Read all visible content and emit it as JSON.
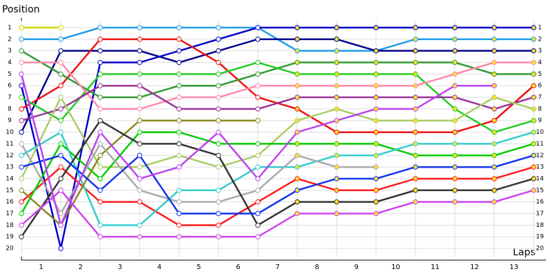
{
  "chart_data": {
    "type": "line",
    "y_label": "Position",
    "x_label": "Laps",
    "x": [
      0,
      1,
      2,
      3,
      4,
      5,
      6,
      7,
      8,
      9,
      10,
      11,
      12,
      13
    ],
    "xlim": [
      0,
      13
    ],
    "ylim": [
      1,
      20
    ],
    "y_reversed": true,
    "grid": true,
    "xticks": [
      {
        "value": 0.5,
        "label": "1"
      },
      {
        "value": 1.5,
        "label": "2"
      },
      {
        "value": 2.5,
        "label": "3"
      },
      {
        "value": 3.5,
        "label": "4"
      },
      {
        "value": 4.5,
        "label": "5"
      },
      {
        "value": 5.5,
        "label": "6"
      },
      {
        "value": 6.5,
        "label": "7"
      },
      {
        "value": 7.5,
        "label": "8"
      },
      {
        "value": 8.5,
        "label": "9"
      },
      {
        "value": 9.5,
        "label": "10"
      },
      {
        "value": 10.5,
        "label": "11"
      },
      {
        "value": 11.5,
        "label": "12"
      },
      {
        "value": 12.5,
        "label": "13"
      }
    ],
    "yticks": [
      1,
      2,
      3,
      4,
      5,
      6,
      7,
      8,
      9,
      10,
      11,
      12,
      13,
      14,
      15,
      16,
      17,
      18,
      19,
      20
    ],
    "series": [
      {
        "color": "#d4d400",
        "values": [
          1,
          1,
          null,
          null,
          null,
          null,
          null,
          null,
          null,
          null,
          null,
          null,
          null,
          null
        ]
      },
      {
        "color": "#1e9be8",
        "values": [
          2,
          2,
          1,
          1,
          1,
          1,
          1,
          3,
          3,
          3,
          2,
          2,
          2,
          2
        ]
      },
      {
        "color": "#0000cc",
        "values": [
          6,
          20,
          4,
          4,
          3,
          2,
          1,
          1,
          1,
          1,
          1,
          1,
          1,
          1
        ]
      },
      {
        "color": "#00008b",
        "values": [
          10,
          3,
          3,
          3,
          4,
          3,
          2,
          2,
          2,
          3,
          3,
          3,
          3,
          3
        ]
      },
      {
        "color": "#ee1111",
        "values": [
          8,
          6,
          2,
          2,
          2,
          4,
          7,
          8,
          10,
          10,
          10,
          10,
          9,
          6
        ]
      },
      {
        "color": "#ff1a1a",
        "values": [
          16,
          13,
          16,
          16,
          18,
          18,
          16,
          14,
          15,
          15,
          14,
          14,
          14,
          13
        ]
      },
      {
        "color": "#339933",
        "values": [
          3,
          5,
          7,
          7,
          6,
          6,
          5,
          4,
          4,
          4,
          4,
          4,
          5,
          5
        ]
      },
      {
        "color": "#22cc22",
        "values": [
          7,
          9,
          5,
          5,
          5,
          5,
          4,
          5,
          5,
          5,
          5,
          8,
          10,
          9
        ]
      },
      {
        "color": "#ff88aa",
        "values": [
          4,
          4,
          8,
          8,
          7,
          7,
          6,
          6,
          6,
          6,
          6,
          5,
          4,
          4
        ]
      },
      {
        "color": "#993399",
        "values": [
          9,
          8,
          6,
          6,
          8,
          8,
          8,
          7,
          7,
          7,
          7,
          7,
          8,
          7
        ]
      },
      {
        "color": "#aacc66",
        "values": [
          14,
          7,
          13,
          13,
          12,
          13,
          12,
          9,
          8,
          9,
          9,
          9,
          7,
          8
        ]
      },
      {
        "color": "#00cc00",
        "values": [
          17,
          11,
          14,
          10,
          10,
          11,
          11,
          11,
          11,
          11,
          12,
          12,
          12,
          11
        ]
      },
      {
        "color": "#33cccc",
        "values": [
          12,
          10,
          18,
          18,
          15,
          15,
          13,
          13,
          12,
          12,
          11,
          11,
          11,
          10
        ]
      },
      {
        "color": "#888822",
        "values": [
          15,
          18,
          12,
          9,
          9,
          9,
          9,
          null,
          null,
          null,
          null,
          null,
          null,
          null
        ]
      },
      {
        "color": "#aaaaaa",
        "values": [
          11,
          17,
          11,
          15,
          16,
          16,
          15,
          12,
          13,
          13,
          null,
          null,
          null,
          null
        ]
      },
      {
        "color": "#333333",
        "values": [
          19,
          14,
          9,
          11,
          11,
          12,
          18,
          16,
          16,
          16,
          15,
          15,
          15,
          14
        ]
      },
      {
        "color": "#1133ee",
        "values": [
          13,
          12,
          15,
          12,
          17,
          17,
          17,
          15,
          14,
          14,
          13,
          13,
          13,
          12
        ]
      },
      {
        "color": "#cc44ee",
        "values": [
          18,
          15,
          19,
          19,
          19,
          19,
          19,
          17,
          17,
          17,
          16,
          16,
          16,
          15
        ]
      },
      {
        "color": "#bb44ee",
        "values": [
          5,
          18,
          10,
          14,
          13,
          10,
          14,
          10,
          9,
          8,
          8,
          6,
          6,
          null
        ]
      }
    ]
  }
}
